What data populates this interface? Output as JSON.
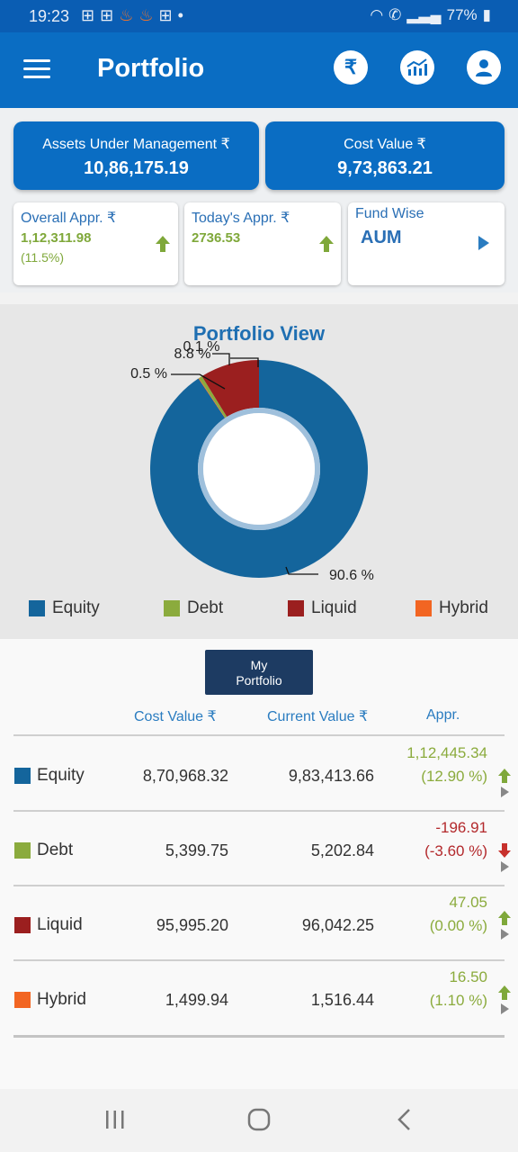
{
  "status": {
    "time": "19:23",
    "battery": "77%"
  },
  "app": {
    "title": "Portfolio"
  },
  "cards": {
    "aum": {
      "label": "Assets Under Management ₹",
      "value": "10,86,175.19"
    },
    "cost": {
      "label": "Cost Value ₹",
      "value": "9,73,863.21"
    },
    "overall": {
      "label": "Overall Appr. ₹",
      "value": "1,12,311.98",
      "pct": "(11.5%)"
    },
    "today": {
      "label": "Today's Appr. ₹",
      "value": "2736.53"
    },
    "fund": {
      "label": "Fund Wise",
      "value": "AUM"
    }
  },
  "chart_data": {
    "type": "pie",
    "title": "Portfolio View",
    "labels": [
      "Equity",
      "Debt",
      "Liquid",
      "Hybrid"
    ],
    "values": [
      90.6,
      0.5,
      8.8,
      0.1
    ],
    "value_labels": [
      "90.6 %",
      "0.5 %",
      "8.8 %",
      "0.1 %"
    ],
    "colors": [
      "#14659c",
      "#8bab3d",
      "#9b1f1f",
      "#f26522"
    ],
    "donut": true,
    "legend": "bottom"
  },
  "table": {
    "tab_label_1": "My",
    "tab_label_2": "Portfolio",
    "headers": {
      "cost": "Cost Value ₹",
      "current": "Current Value ₹",
      "appr": "Appr."
    },
    "rows": [
      {
        "name": "Equity",
        "cost": "8,70,968.32",
        "current": "9,83,413.66",
        "appr": "1,12,445.34",
        "pct": "(12.90 %)",
        "dir": "up"
      },
      {
        "name": "Debt",
        "cost": "5,399.75",
        "current": "5,202.84",
        "appr": "-196.91",
        "pct": "(-3.60 %)",
        "dir": "down"
      },
      {
        "name": "Liquid",
        "cost": "95,995.20",
        "current": "96,042.25",
        "appr": "47.05",
        "pct": "(0.00 %)",
        "dir": "up"
      },
      {
        "name": "Hybrid",
        "cost": "1,499.94",
        "current": "1,516.44",
        "appr": "16.50",
        "pct": "(1.10 %)",
        "dir": "up"
      }
    ]
  }
}
